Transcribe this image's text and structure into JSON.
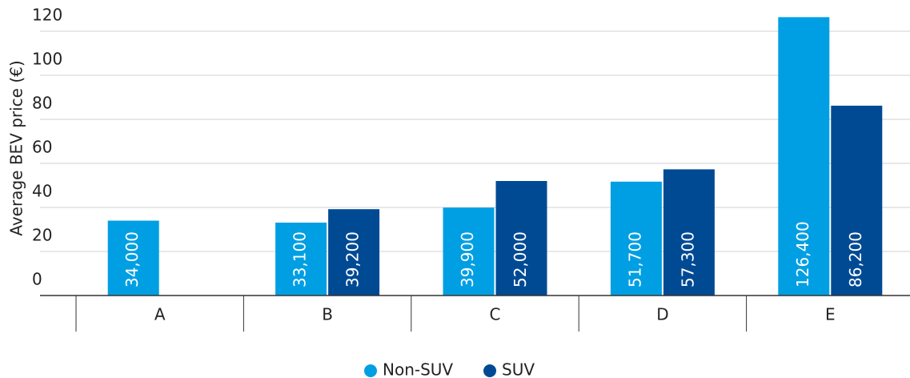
{
  "chart_data": {
    "type": "bar",
    "y_label": "Average BEV price (€)",
    "categories": [
      "A",
      "B",
      "C",
      "D",
      "E"
    ],
    "series": [
      {
        "name": "Non-SUV",
        "color": "#009fe3",
        "values": [
          34,
          33.1,
          39.9,
          51.7,
          126.4
        ],
        "value_labels": [
          "34,000",
          "33,100",
          "39,900",
          "51,700",
          "126,400"
        ]
      },
      {
        "name": "SUV",
        "color": "#004a94",
        "values": [
          null,
          39.2,
          52,
          57.3,
          86.2
        ],
        "value_labels": [
          null,
          "39,200",
          "52,000",
          "57,300",
          "86,200"
        ]
      }
    ],
    "ylim": [
      0,
      120
    ],
    "yticks": [
      0,
      20,
      40,
      60,
      80,
      100,
      120
    ],
    "grid": true,
    "legend": "bottom"
  }
}
